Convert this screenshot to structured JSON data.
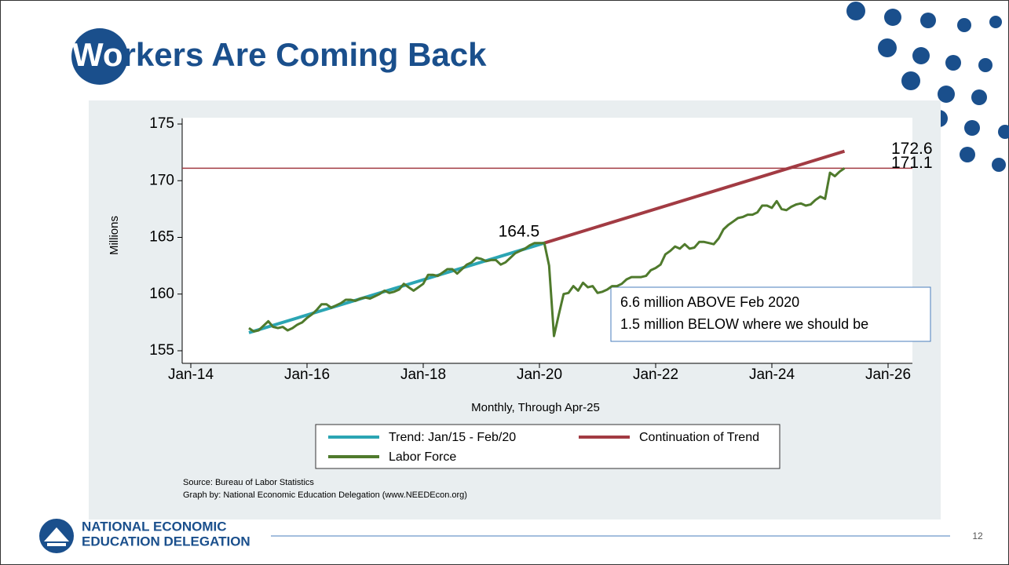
{
  "slide": {
    "title": "Workers Are Coming Back"
  },
  "chart_data": {
    "type": "line",
    "x_label": "Monthly, Through Apr-25",
    "y_label": "Millions",
    "xlim": [
      "2014-01",
      "2026-01"
    ],
    "xticks": [
      {
        "value": "2014-01",
        "label": "Jan-14"
      },
      {
        "value": "2016-01",
        "label": "Jan-16"
      },
      {
        "value": "2018-01",
        "label": "Jan-18"
      },
      {
        "value": "2020-01",
        "label": "Jan-20"
      },
      {
        "value": "2022-01",
        "label": "Jan-22"
      },
      {
        "value": "2024-01",
        "label": "Jan-24"
      },
      {
        "value": "2026-01",
        "label": "Jan-26"
      }
    ],
    "ylim": [
      154.5,
      175.5
    ],
    "yticks": [
      155,
      160,
      165,
      170,
      175
    ],
    "series": [
      {
        "name": "Trend: Jan/15 - Feb/20",
        "color": "#2ba5b3",
        "x": [
          "2015-01",
          "2020-02"
        ],
        "values": [
          156.6,
          164.5
        ]
      },
      {
        "name": "Continuation of Trend",
        "color": "#a23b43",
        "x": [
          "2020-02",
          "2025-04"
        ],
        "values": [
          164.5,
          172.6
        ]
      },
      {
        "name": "Labor Force",
        "color": "#4f7a2c",
        "x": [
          "2015-01",
          "2015-02",
          "2015-03",
          "2015-04",
          "2015-05",
          "2015-06",
          "2015-07",
          "2015-08",
          "2015-09",
          "2015-10",
          "2015-11",
          "2015-12",
          "2016-01",
          "2016-02",
          "2016-03",
          "2016-04",
          "2016-05",
          "2016-06",
          "2016-07",
          "2016-08",
          "2016-09",
          "2016-10",
          "2016-11",
          "2016-12",
          "2017-01",
          "2017-02",
          "2017-03",
          "2017-04",
          "2017-05",
          "2017-06",
          "2017-07",
          "2017-08",
          "2017-09",
          "2017-10",
          "2017-11",
          "2017-12",
          "2018-01",
          "2018-02",
          "2018-03",
          "2018-04",
          "2018-05",
          "2018-06",
          "2018-07",
          "2018-08",
          "2018-09",
          "2018-10",
          "2018-11",
          "2018-12",
          "2019-01",
          "2019-02",
          "2019-03",
          "2019-04",
          "2019-05",
          "2019-06",
          "2019-07",
          "2019-08",
          "2019-09",
          "2019-10",
          "2019-11",
          "2019-12",
          "2020-01",
          "2020-02",
          "2020-03",
          "2020-04",
          "2020-05",
          "2020-06",
          "2020-07",
          "2020-08",
          "2020-09",
          "2020-10",
          "2020-11",
          "2020-12",
          "2021-01",
          "2021-02",
          "2021-03",
          "2021-04",
          "2021-05",
          "2021-06",
          "2021-07",
          "2021-08",
          "2021-09",
          "2021-10",
          "2021-11",
          "2021-12",
          "2022-01",
          "2022-02",
          "2022-03",
          "2022-04",
          "2022-05",
          "2022-06",
          "2022-07",
          "2022-08",
          "2022-09",
          "2022-10",
          "2022-11",
          "2022-12",
          "2023-01",
          "2023-02",
          "2023-03",
          "2023-04",
          "2023-05",
          "2023-06",
          "2023-07",
          "2023-08",
          "2023-09",
          "2023-10",
          "2023-11",
          "2023-12",
          "2024-01",
          "2024-02",
          "2024-03",
          "2024-04",
          "2024-05",
          "2024-06",
          "2024-07",
          "2024-08",
          "2024-09",
          "2024-10",
          "2024-11",
          "2024-12",
          "2025-01",
          "2025-02",
          "2025-03",
          "2025-04"
        ],
        "values": [
          157.0,
          156.7,
          156.8,
          157.2,
          157.6,
          157.1,
          157.0,
          157.1,
          156.8,
          157.0,
          157.3,
          157.5,
          157.9,
          158.2,
          158.6,
          159.1,
          159.1,
          158.8,
          159.0,
          159.2,
          159.5,
          159.5,
          159.4,
          159.6,
          159.7,
          159.6,
          159.8,
          160.0,
          160.3,
          160.1,
          160.2,
          160.4,
          160.9,
          160.6,
          160.3,
          160.6,
          160.9,
          161.7,
          161.7,
          161.6,
          161.9,
          162.2,
          162.2,
          161.8,
          162.2,
          162.6,
          162.8,
          163.2,
          163.1,
          162.9,
          163.0,
          163.0,
          162.6,
          162.8,
          163.2,
          163.6,
          163.8,
          164.0,
          164.3,
          164.5,
          164.5,
          164.5,
          162.5,
          156.3,
          158.2,
          160.0,
          160.1,
          160.7,
          160.3,
          161.0,
          160.6,
          160.7,
          160.1,
          160.2,
          160.4,
          160.7,
          160.7,
          160.9,
          161.3,
          161.5,
          161.5,
          161.5,
          161.6,
          162.1,
          162.3,
          162.6,
          163.5,
          163.8,
          164.2,
          164.0,
          164.4,
          164.0,
          164.1,
          164.6,
          164.6,
          164.5,
          164.4,
          164.9,
          165.7,
          166.1,
          166.4,
          166.7,
          166.8,
          167.0,
          167.0,
          167.2,
          167.8,
          167.8,
          167.6,
          168.2,
          167.5,
          167.4,
          167.7,
          167.9,
          168.0,
          167.8,
          167.9,
          168.3,
          168.6,
          168.4,
          170.7,
          170.4,
          170.8,
          171.1
        ]
      }
    ],
    "reference_line": {
      "value": 171.1,
      "color": "#a23b43"
    },
    "annotations": [
      "6.6 million ABOVE Feb 2020",
      "1.5 million BELOW where we should be"
    ],
    "notes": [
      "Source: Bureau of Labor Statistics",
      "Graph by: National Economic Education Delegation (www.NEEDEcon.org)"
    ]
  },
  "footer": {
    "logo_line1": "NATIONAL ECONOMIC",
    "logo_line2": "EDUCATION DELEGATION",
    "page_number": "12"
  }
}
